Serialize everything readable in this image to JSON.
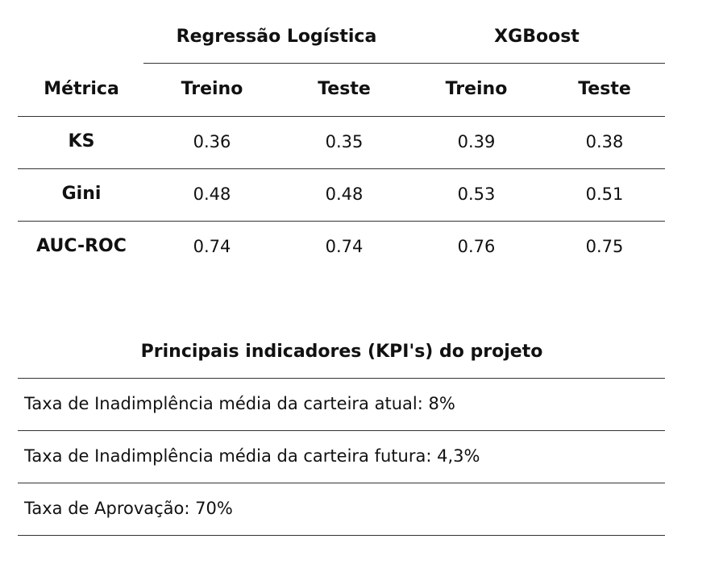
{
  "metrics_table": {
    "groups": [
      "Regressão Logística",
      "XGBoost"
    ],
    "metric_header": "Métrica",
    "sub_headers": [
      "Treino",
      "Teste",
      "Treino",
      "Teste"
    ],
    "rows": [
      {
        "metric": "KS",
        "values": [
          "0.36",
          "0.35",
          "0.39",
          "0.38"
        ]
      },
      {
        "metric": "Gini",
        "values": [
          "0.48",
          "0.48",
          "0.53",
          "0.51"
        ]
      },
      {
        "metric": "AUC-ROC",
        "values": [
          "0.74",
          "0.74",
          "0.76",
          "0.75"
        ]
      }
    ]
  },
  "kpis": {
    "title": "Principais indicadores (KPI's) do projeto",
    "items": [
      {
        "label": "Taxa de Inadimplência média da carteira atual:",
        "value": "8%"
      },
      {
        "label": "Taxa de Inadimplência média da carteira futura:",
        "value": "4,3%"
      },
      {
        "label": "Taxa de Aprovação:",
        "value": "70%"
      }
    ]
  }
}
